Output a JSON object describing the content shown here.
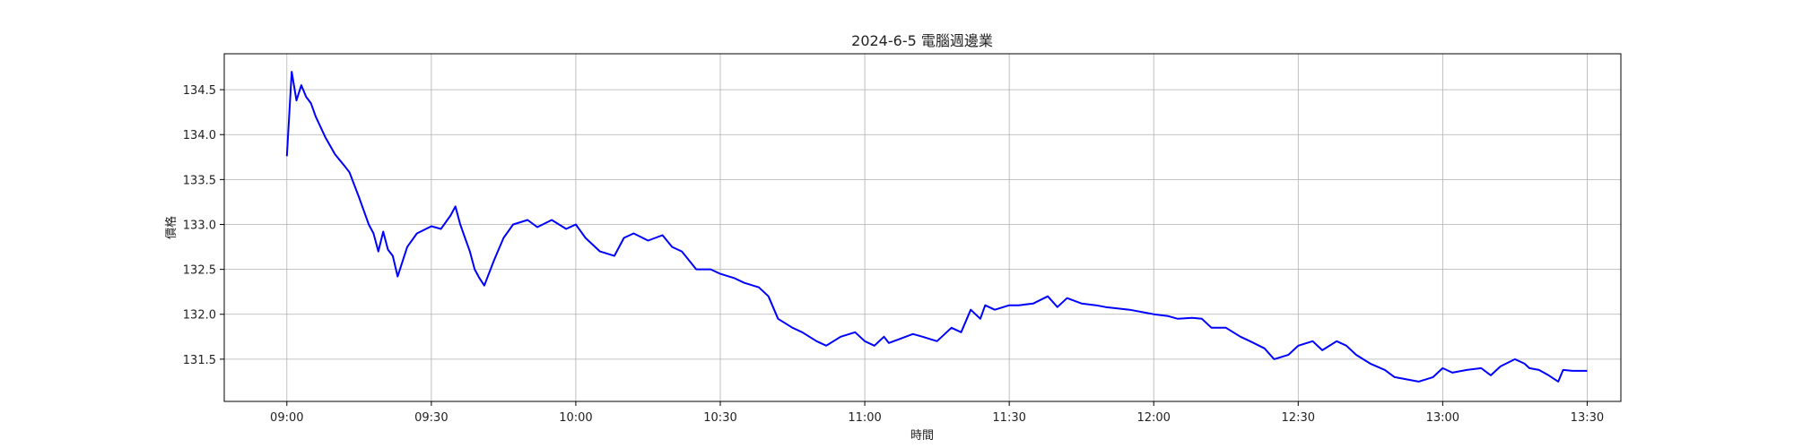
{
  "chart_data": {
    "type": "line",
    "title": "2024-6-5 電腦週邊業",
    "xlabel": "時間",
    "ylabel": "價格",
    "x_ticks": [
      "09:00",
      "09:30",
      "10:00",
      "10:30",
      "11:00",
      "11:30",
      "12:00",
      "12:30",
      "13:00",
      "13:30"
    ],
    "y_ticks": [
      "131.5",
      "132.0",
      "132.5",
      "133.0",
      "133.5",
      "134.0",
      "134.5"
    ],
    "xlim": [
      "08:47",
      "13:37"
    ],
    "ylim": [
      131.03,
      134.9
    ],
    "grid": true,
    "series": [
      {
        "color": "#0000ff",
        "x": [
          "09:00",
          "09:01",
          "09:02",
          "09:03",
          "09:04",
          "09:05",
          "09:06",
          "09:08",
          "09:10",
          "09:12",
          "09:13",
          "09:15",
          "09:17",
          "09:18",
          "09:19",
          "09:20",
          "09:21",
          "09:22",
          "09:23",
          "09:25",
          "09:27",
          "09:30",
          "09:32",
          "09:34",
          "09:35",
          "09:36",
          "09:37",
          "09:38",
          "09:39",
          "09:40",
          "09:41",
          "09:43",
          "09:45",
          "09:47",
          "09:50",
          "09:52",
          "09:55",
          "09:58",
          "10:00",
          "10:02",
          "10:05",
          "10:08",
          "10:10",
          "10:12",
          "10:15",
          "10:18",
          "10:20",
          "10:22",
          "10:25",
          "10:28",
          "10:30",
          "10:33",
          "10:35",
          "10:38",
          "10:40",
          "10:42",
          "10:45",
          "10:47",
          "10:50",
          "10:52",
          "10:55",
          "10:58",
          "11:00",
          "11:02",
          "11:04",
          "11:05",
          "11:07",
          "11:10",
          "11:12",
          "11:15",
          "11:18",
          "11:20",
          "11:22",
          "11:24",
          "11:25",
          "11:27",
          "11:30",
          "11:32",
          "11:35",
          "11:38",
          "11:40",
          "11:42",
          "11:45",
          "11:48",
          "11:50",
          "11:55",
          "12:00",
          "12:03",
          "12:05",
          "12:08",
          "12:10",
          "12:12",
          "12:15",
          "12:18",
          "12:20",
          "12:23",
          "12:25",
          "12:28",
          "12:30",
          "12:33",
          "12:35",
          "12:38",
          "12:40",
          "12:42",
          "12:45",
          "12:48",
          "12:50",
          "12:52",
          "12:55",
          "12:58",
          "13:00",
          "13:02",
          "13:05",
          "13:08",
          "13:10",
          "13:12",
          "13:15",
          "13:17",
          "13:18",
          "13:20",
          "13:22",
          "13:24",
          "13:25",
          "13:27",
          "13:30"
        ],
        "y": [
          133.76,
          134.7,
          134.38,
          134.55,
          134.42,
          134.35,
          134.2,
          133.97,
          133.78,
          133.65,
          133.58,
          133.3,
          133.0,
          132.9,
          132.7,
          132.92,
          132.72,
          132.65,
          132.42,
          132.75,
          132.9,
          132.98,
          132.95,
          133.1,
          133.2,
          133.0,
          132.85,
          132.7,
          132.5,
          132.4,
          132.32,
          132.6,
          132.85,
          133.0,
          133.05,
          132.97,
          133.05,
          132.95,
          133.0,
          132.85,
          132.7,
          132.65,
          132.85,
          132.9,
          132.82,
          132.88,
          132.75,
          132.7,
          132.5,
          132.5,
          132.45,
          132.4,
          132.35,
          132.3,
          132.2,
          131.95,
          131.85,
          131.8,
          131.7,
          131.65,
          131.75,
          131.8,
          131.7,
          131.65,
          131.75,
          131.68,
          131.72,
          131.78,
          131.75,
          131.7,
          131.85,
          131.8,
          132.05,
          131.95,
          132.1,
          132.05,
          132.1,
          132.1,
          132.12,
          132.2,
          132.08,
          132.18,
          132.12,
          132.1,
          132.08,
          132.05,
          132.0,
          131.98,
          131.95,
          131.96,
          131.95,
          131.85,
          131.85,
          131.75,
          131.7,
          131.62,
          131.5,
          131.55,
          131.65,
          131.7,
          131.6,
          131.7,
          131.65,
          131.55,
          131.45,
          131.38,
          131.3,
          131.28,
          131.25,
          131.3,
          131.4,
          131.35,
          131.38,
          131.4,
          131.32,
          131.42,
          131.5,
          131.45,
          131.4,
          131.38,
          131.32,
          131.25,
          131.38,
          131.37,
          131.37
        ]
      }
    ]
  }
}
